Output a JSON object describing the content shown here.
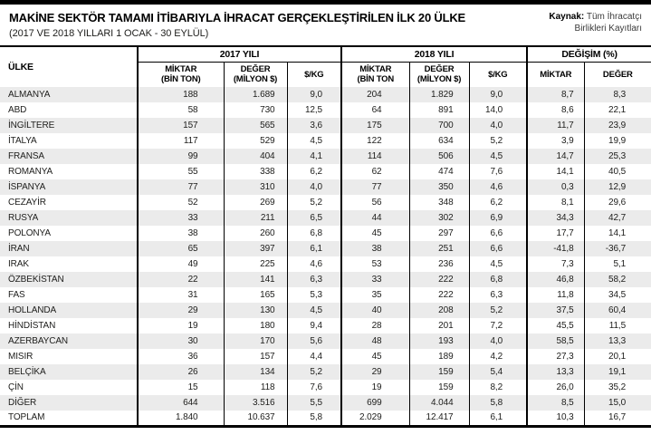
{
  "header": {
    "title": "MAKİNE SEKTÖR TAMAMI İTİBARIYLA İHRACAT GERÇEKLEŞTİRİLEN İLK 20 ÜLKE",
    "subtitle": "(2017 VE 2018 YILLARI 1 OCAK - 30 EYLÜL)",
    "source": {
      "label": "Kaynak:",
      "line1": "Tüm İhracatçı",
      "line2": "Birlikleri Kayıtları"
    }
  },
  "colors": {
    "topbar": "#000000",
    "row_stripe": "#ebebeb",
    "border": "#000000",
    "text": "#1d1d1b"
  },
  "chart_data": {
    "type": "table",
    "title": "MAKİNE SEKTÖR TAMAMI İTİBARIYLA İHRACAT GERÇEKLEŞTİRİLEN İLK 20 ÜLKE",
    "subtitle": "(2017 VE 2018 YILLARI 1 OCAK - 30 EYLÜL)",
    "source": "Kaynak: Tüm İhracatçı Birlikleri Kayıtları",
    "country_header": "ÜLKE",
    "groups": [
      {
        "label": "2017 YILI",
        "span": 3
      },
      {
        "label": "2018 YILI",
        "span": 3
      },
      {
        "label": "DEĞİŞİM (%)",
        "span": 2
      }
    ],
    "subcolumns": [
      "MİKTAR\n(BİN TON)",
      "DEĞER\n(MİLYON $)",
      "$/KG",
      "MİKTAR\n(BİN TON",
      "DEĞER\n(MİLYON $)",
      "$/KG",
      "MİKTAR",
      "DEĞER"
    ],
    "rows": [
      [
        "ALMANYA",
        "188",
        "1.689",
        "9,0",
        "204",
        "1.829",
        "9,0",
        "8,7",
        "8,3"
      ],
      [
        "ABD",
        "58",
        "730",
        "12,5",
        "64",
        "891",
        "14,0",
        "8,6",
        "22,1"
      ],
      [
        "İNGİLTERE",
        "157",
        "565",
        "3,6",
        "175",
        "700",
        "4,0",
        "11,7",
        "23,9"
      ],
      [
        "İTALYA",
        "117",
        "529",
        "4,5",
        "122",
        "634",
        "5,2",
        "3,9",
        "19,9"
      ],
      [
        "FRANSA",
        "99",
        "404",
        "4,1",
        "114",
        "506",
        "4,5",
        "14,7",
        "25,3"
      ],
      [
        "ROMANYA",
        "55",
        "338",
        "6,2",
        "62",
        "474",
        "7,6",
        "14,1",
        "40,5"
      ],
      [
        "İSPANYA",
        "77",
        "310",
        "4,0",
        "77",
        "350",
        "4,6",
        "0,3",
        "12,9"
      ],
      [
        "CEZAYİR",
        "52",
        "269",
        "5,2",
        "56",
        "348",
        "6,2",
        "8,1",
        "29,6"
      ],
      [
        "RUSYA",
        "33",
        "211",
        "6,5",
        "44",
        "302",
        "6,9",
        "34,3",
        "42,7"
      ],
      [
        "POLONYA",
        "38",
        "260",
        "6,8",
        "45",
        "297",
        "6,6",
        "17,7",
        "14,1"
      ],
      [
        "İRAN",
        "65",
        "397",
        "6,1",
        "38",
        "251",
        "6,6",
        "-41,8",
        "-36,7"
      ],
      [
        "IRAK",
        "49",
        "225",
        "4,6",
        "53",
        "236",
        "4,5",
        "7,3",
        "5,1"
      ],
      [
        "ÖZBEKİSTAN",
        "22",
        "141",
        "6,3",
        "33",
        "222",
        "6,8",
        "46,8",
        "58,2"
      ],
      [
        "FAS",
        "31",
        "165",
        "5,3",
        "35",
        "222",
        "6,3",
        "11,8",
        "34,5"
      ],
      [
        "HOLLANDA",
        "29",
        "130",
        "4,5",
        "40",
        "208",
        "5,2",
        "37,5",
        "60,4"
      ],
      [
        "HİNDİSTAN",
        "19",
        "180",
        "9,4",
        "28",
        "201",
        "7,2",
        "45,5",
        "11,5"
      ],
      [
        "AZERBAYCAN",
        "30",
        "170",
        "5,6",
        "48",
        "193",
        "4,0",
        "58,5",
        "13,3"
      ],
      [
        "MISIR",
        "36",
        "157",
        "4,4",
        "45",
        "189",
        "4,2",
        "27,3",
        "20,1"
      ],
      [
        "BELÇİKA",
        "26",
        "134",
        "5,2",
        "29",
        "159",
        "5,4",
        "13,3",
        "19,1"
      ],
      [
        "ÇİN",
        "15",
        "118",
        "7,6",
        "19",
        "159",
        "8,2",
        "26,0",
        "35,2"
      ],
      [
        "DİĞER",
        "644",
        "3.516",
        "5,5",
        "699",
        "4.044",
        "5,8",
        "8,5",
        "15,0"
      ],
      [
        "TOPLAM",
        "1.840",
        "10.637",
        "5,8",
        "2.029",
        "12.417",
        "6,1",
        "10,3",
        "16,7"
      ]
    ]
  }
}
